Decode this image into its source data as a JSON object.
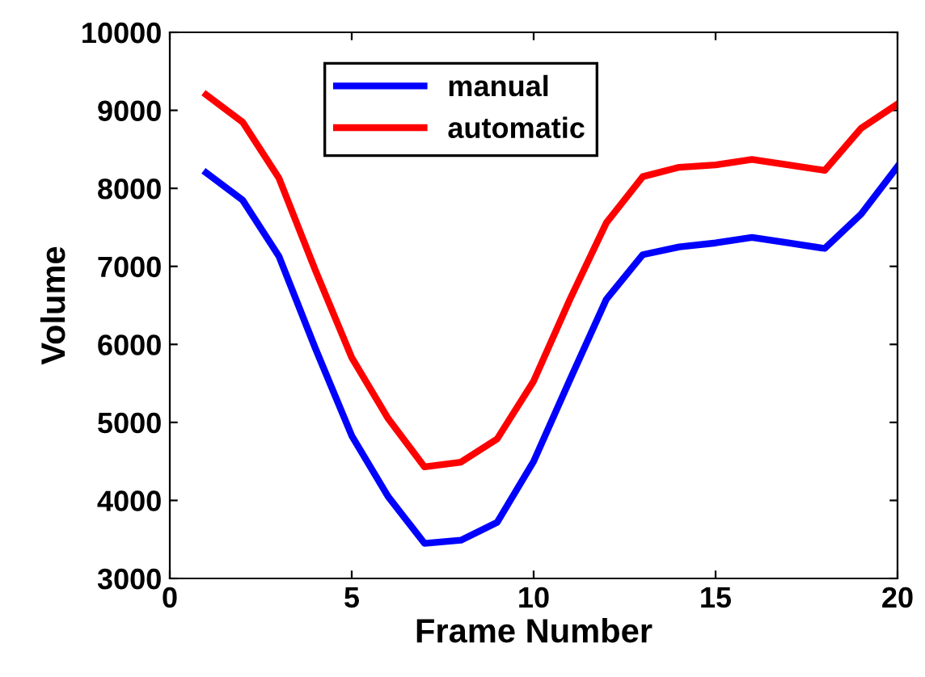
{
  "chart_data": {
    "type": "line",
    "xlabel": "Frame Number",
    "ylabel": "Volume",
    "x": [
      1,
      2,
      3,
      4,
      5,
      6,
      7,
      8,
      9,
      10,
      11,
      12,
      13,
      14,
      15,
      16,
      17,
      18,
      19,
      20
    ],
    "series": [
      {
        "name": "manual",
        "color": "#0000ff",
        "values": [
          8200,
          7850,
          7130,
          5950,
          4830,
          4050,
          3450,
          3490,
          3720,
          4500,
          5550,
          6580,
          7150,
          7250,
          7300,
          7370,
          7300,
          7230,
          7670,
          8280
        ]
      },
      {
        "name": "automatic",
        "color": "#ff0000",
        "values": [
          9200,
          8850,
          8130,
          6950,
          5830,
          5050,
          4430,
          4490,
          4790,
          5530,
          6580,
          7560,
          8150,
          8270,
          8300,
          8370,
          8300,
          8230,
          8770,
          9080
        ]
      }
    ],
    "xlim": [
      0,
      20
    ],
    "xticks": [
      0,
      5,
      10,
      15,
      20
    ],
    "ylim": [
      3000,
      10000
    ],
    "yticks": [
      3000,
      4000,
      5000,
      6000,
      7000,
      8000,
      9000,
      10000
    ],
    "grid": false,
    "legend": "top",
    "marker": "none",
    "line_style": "solid"
  }
}
